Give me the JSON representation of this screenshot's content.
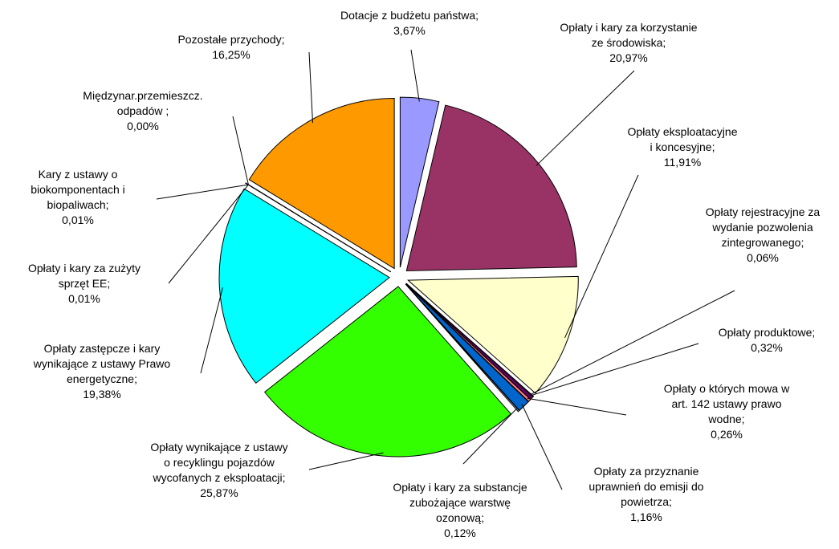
{
  "chart_data": {
    "type": "pie",
    "categories": [
      "Dotacje z budżetu państwa;",
      "Opłaty i kary za korzystanie\nze środowiska;",
      "Opłaty eksploatacyjne\ni koncesyjne;",
      "Opłaty rejestracyjne za\nwydanie pozwolenia\nzintegrowanego;",
      "Opłaty produktowe;",
      "Opłaty o których mowa w\nart. 142 ustawy prawo\nwodne;",
      "Opłaty za przyznanie\nuprawnień do emisji do\npowietrza;",
      "Opłaty i kary za substancje\nzubożające warstwę\nozonową;",
      "Opłaty wynikające z ustawy\no recyklingu pojazdów\nwycofanych z eksploatacji;",
      "Opłaty zastępcze i kary\nwynikające z ustawy Prawo\nenergetyczne;",
      "Opłaty i kary za zużyty\nsprzęt EE;",
      "Kary z ustawy o\nbiokomponentach i\nbiopaliwach;",
      "Międzynar.przemieszcz.\nodpadów ;",
      "Pozostałe przychody;"
    ],
    "values": [
      3.67,
      20.97,
      11.91,
      0.06,
      0.32,
      0.26,
      1.16,
      0.12,
      25.87,
      19.38,
      0.01,
      0.01,
      0.0,
      16.25
    ],
    "value_labels": [
      "3,67%",
      "20,97%",
      "11,91%",
      "0,06%",
      "0,32%",
      "0,26%",
      "1,16%",
      "0,12%",
      "25,87%",
      "19,38%",
      "0,01%",
      "0,01%",
      "0,00%",
      "16,25%"
    ],
    "colors": [
      "#9999ff",
      "#993366",
      "#ffffcc",
      "#ccffff",
      "#660066",
      "#ff8080",
      "#0066cc",
      "#ccccff",
      "#33ff00",
      "#00ffff",
      "#ffff00",
      "#800080",
      "#800000",
      "#ff9900"
    ]
  }
}
